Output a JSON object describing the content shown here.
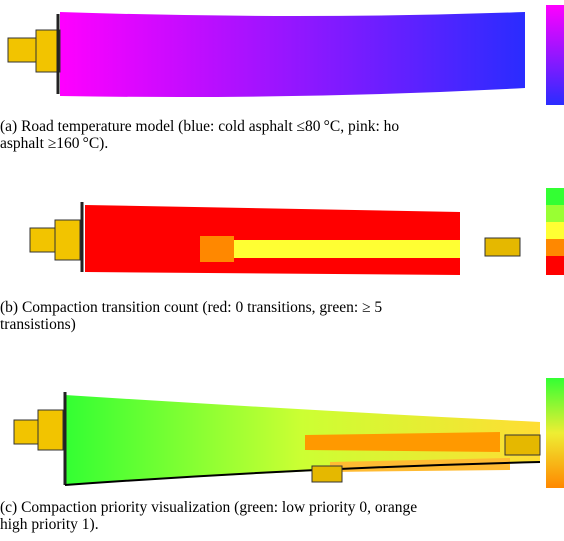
{
  "figures": [
    {
      "caption_lines": [
        "(a) Road temperature model (blue: cold asphalt ≤80 °C, pink: ho",
        "asphalt ≥160 °C)."
      ]
    },
    {
      "caption_lines": [
        "(b) Compaction transition count (red: 0 transitions, green: ≥ 5",
        "transistions)"
      ]
    },
    {
      "caption_lines": [
        "(c) Compaction priority visualization (green: low priority 0, orange",
        "high priority 1)."
      ]
    }
  ]
}
